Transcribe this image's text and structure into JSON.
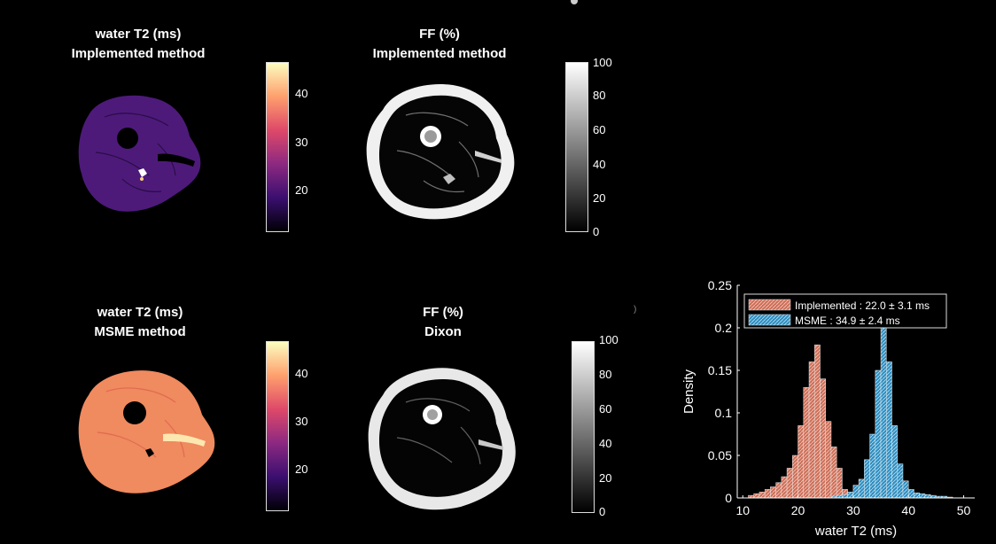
{
  "panels": {
    "t2_impl": {
      "line1": "water T2 (ms)",
      "line2": "Implemented method"
    },
    "ff_impl": {
      "line1": "FF (%)",
      "line2": "Implemented method"
    },
    "t2_msme": {
      "line1": "water T2 (ms)",
      "line2": "MSME method"
    },
    "ff_dixon": {
      "line1": "FF (%)",
      "line2": "Dixon"
    }
  },
  "colorbars": {
    "t2_ticks": [
      "40",
      "30",
      "20"
    ],
    "ff_ticks": [
      "100",
      "80",
      "60",
      "40",
      "20",
      "0"
    ]
  },
  "colors": {
    "implemented": "#cd6f5a",
    "msme": "#2f8ec0"
  },
  "chart_data": {
    "type": "bar",
    "xlabel": "water T2 (ms)",
    "ylabel": "Density",
    "xlim": [
      9,
      52
    ],
    "ylim": [
      0,
      0.25
    ],
    "xticks": [
      10,
      20,
      30,
      40,
      50
    ],
    "yticks": [
      0,
      0.05,
      0.1,
      0.15,
      0.2,
      0.25
    ],
    "ytick_labels": [
      "0",
      "0.05",
      "0.1",
      "0.15",
      "0.2",
      "0.25"
    ],
    "legend_position": "top",
    "bin_width": 1,
    "series": [
      {
        "name": "Implemented : 22.0 ± 3.1 ms",
        "bin_starts": [
          11,
          12,
          13,
          14,
          15,
          16,
          17,
          18,
          19,
          20,
          21,
          22,
          23,
          24,
          25,
          26,
          27,
          28,
          29
        ],
        "values": [
          0.003,
          0.005,
          0.007,
          0.01,
          0.013,
          0.018,
          0.025,
          0.035,
          0.05,
          0.085,
          0.13,
          0.16,
          0.18,
          0.14,
          0.09,
          0.06,
          0.035,
          0.01,
          0.003
        ]
      },
      {
        "name": "MSME : 34.9 ± 2.4 ms",
        "bin_starts": [
          26,
          27,
          28,
          29,
          30,
          31,
          32,
          33,
          34,
          35,
          36,
          37,
          38,
          39,
          40,
          41,
          42,
          43,
          44,
          45,
          46,
          47
        ],
        "values": [
          0.002,
          0.003,
          0.004,
          0.007,
          0.015,
          0.022,
          0.045,
          0.075,
          0.15,
          0.2,
          0.16,
          0.085,
          0.04,
          0.02,
          0.01,
          0.006,
          0.005,
          0.004,
          0.003,
          0.002,
          0.002,
          0.001
        ]
      }
    ]
  }
}
